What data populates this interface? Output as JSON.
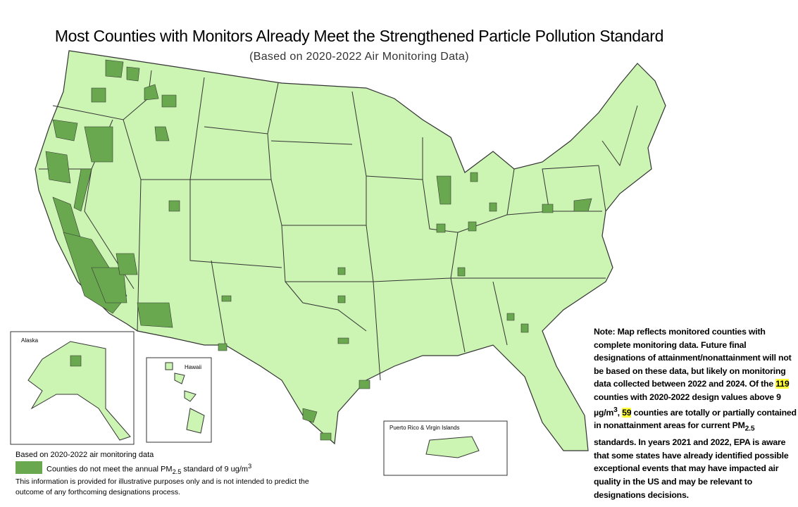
{
  "header": {
    "title": "Most Counties with Monitors Already Meet the Strengthened Particle Pollution Standard",
    "subtitle": "(Based on 2020-2022 Air Monitoring Data)"
  },
  "insets": {
    "alaska": "Alaska",
    "hawaii": "Hawaii",
    "puerto_rico": "Puerto Rico & Virgin Islands"
  },
  "legend": {
    "heading": "Based on 2020-2022 air monitoring data",
    "entry_text": "Counties do not meet the annual PM",
    "entry_sub": "2.5",
    "entry_text_2": " standard of 9 ug/m",
    "entry_sup": "3"
  },
  "disclaimer": "This information is provided for illustrative purposes only and is not intended to predict the outcome of any forthcoming designations process.",
  "note": {
    "part1": "Note:  Map reflects monitored counties with complete monitoring data. Future final designations of attainment/nonattainment will not be based on these data, but likely on monitoring data collected between 2022 and 2024. Of the ",
    "count_above": 119,
    "part2": " counties with 2020-2022 design values above 9 µg/m",
    "part2_sup": "3",
    "part3": ", ",
    "count_nonattainment": 59,
    "part4": " counties are totally or partially contained in nonattainment areas for current PM",
    "part4_sub": "2.5",
    "part5": " standards. In years 2021 and 2022, EPA is aware that some states have already identified possible exceptional events that may have impacted air quality in the US and may be relevant to designations decisions."
  }
}
